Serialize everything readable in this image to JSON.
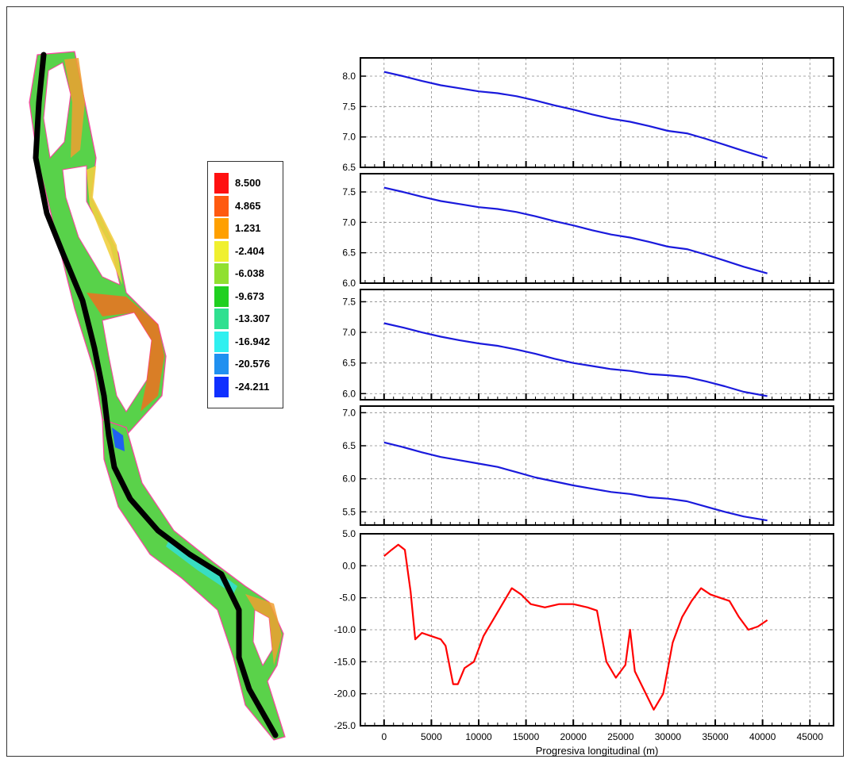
{
  "legend": {
    "values": [
      "8.500",
      "4.865",
      "1.231",
      "-2.404",
      "-6.038",
      "-9.673",
      "-13.307",
      "-16.942",
      "-20.576",
      "-24.211"
    ],
    "colors": [
      "#ff1010",
      "#ff5a10",
      "#ffa000",
      "#f0f030",
      "#90e030",
      "#20d020",
      "#30e090",
      "#30f0f0",
      "#2090f0",
      "#1030ff"
    ]
  },
  "colors": {
    "series_blue": "#1a1adc",
    "series_red": "#ff0000",
    "centerline": "#000000",
    "map_outline": "#ff40a0"
  },
  "chart_data": [
    {
      "type": "line",
      "xlim": [
        -2500,
        47500
      ],
      "ylim": [
        6.5,
        8.3
      ],
      "yticks": [
        "6.5",
        "7.0",
        "7.5",
        "8.0"
      ],
      "series": [
        {
          "color": "#1a1adc",
          "x": [
            0,
            2000,
            4000,
            6000,
            8000,
            10000,
            12000,
            14000,
            16000,
            18000,
            20000,
            22000,
            24000,
            26000,
            28000,
            30000,
            32000,
            34000,
            36000,
            38000,
            40500
          ],
          "values": [
            8.07,
            8.0,
            7.92,
            7.85,
            7.8,
            7.75,
            7.72,
            7.67,
            7.6,
            7.52,
            7.45,
            7.37,
            7.3,
            7.25,
            7.18,
            7.1,
            7.06,
            6.97,
            6.87,
            6.77,
            6.65
          ]
        }
      ]
    },
    {
      "type": "line",
      "xlim": [
        -2500,
        47500
      ],
      "ylim": [
        6.0,
        7.8
      ],
      "yticks": [
        "6.0",
        "6.5",
        "7.0",
        "7.5"
      ],
      "series": [
        {
          "color": "#1a1adc",
          "x": [
            0,
            2000,
            4000,
            6000,
            8000,
            10000,
            12000,
            14000,
            16000,
            18000,
            20000,
            22000,
            24000,
            26000,
            28000,
            30000,
            32000,
            34000,
            36000,
            38000,
            40500
          ],
          "values": [
            7.57,
            7.5,
            7.42,
            7.35,
            7.3,
            7.25,
            7.22,
            7.17,
            7.1,
            7.02,
            6.95,
            6.87,
            6.8,
            6.75,
            6.68,
            6.6,
            6.56,
            6.47,
            6.37,
            6.27,
            6.16
          ]
        }
      ]
    },
    {
      "type": "line",
      "xlim": [
        -2500,
        47500
      ],
      "ylim": [
        5.9,
        7.7
      ],
      "yticks": [
        "6.0",
        "6.5",
        "7.0",
        "7.5"
      ],
      "series": [
        {
          "color": "#1a1adc",
          "x": [
            0,
            2000,
            4000,
            6000,
            8000,
            10000,
            12000,
            14000,
            16000,
            18000,
            20000,
            22000,
            24000,
            26000,
            28000,
            30000,
            32000,
            34000,
            36000,
            38000,
            40500
          ],
          "values": [
            7.15,
            7.08,
            7.0,
            6.93,
            6.87,
            6.82,
            6.78,
            6.72,
            6.65,
            6.57,
            6.5,
            6.45,
            6.4,
            6.37,
            6.32,
            6.3,
            6.27,
            6.2,
            6.12,
            6.03,
            5.96
          ]
        }
      ]
    },
    {
      "type": "line",
      "xlim": [
        -2500,
        47500
      ],
      "ylim": [
        5.3,
        7.1
      ],
      "yticks": [
        "5.5",
        "6.0",
        "6.5",
        "7.0"
      ],
      "series": [
        {
          "color": "#1a1adc",
          "x": [
            0,
            2000,
            4000,
            6000,
            8000,
            10000,
            12000,
            14000,
            16000,
            18000,
            20000,
            22000,
            24000,
            26000,
            28000,
            30000,
            32000,
            34000,
            36000,
            38000,
            40500
          ],
          "values": [
            6.55,
            6.48,
            6.4,
            6.33,
            6.28,
            6.23,
            6.18,
            6.1,
            6.02,
            5.96,
            5.9,
            5.85,
            5.8,
            5.77,
            5.72,
            5.7,
            5.66,
            5.58,
            5.5,
            5.43,
            5.37
          ]
        }
      ]
    },
    {
      "type": "line",
      "xlim": [
        -2500,
        47500
      ],
      "ylim": [
        -25,
        5
      ],
      "yticks": [
        "-25.0",
        "-20.0",
        "-15.0",
        "-10.0",
        "-5.0",
        "0.0",
        "5.0"
      ],
      "xticks": [
        "0",
        "5000",
        "10000",
        "15000",
        "20000",
        "25000",
        "30000",
        "35000",
        "40000",
        "45000"
      ],
      "xlabel": "Progresiva longitudinal (m)",
      "series": [
        {
          "color": "#ff0000",
          "x": [
            0,
            800,
            1500,
            2200,
            2800,
            3300,
            4000,
            5000,
            6000,
            6500,
            7300,
            7800,
            8500,
            9500,
            10500,
            11500,
            12500,
            13500,
            14500,
            15500,
            17000,
            18500,
            20000,
            21500,
            22500,
            23500,
            24500,
            25500,
            26000,
            26500,
            27500,
            28500,
            29500,
            30500,
            31500,
            32500,
            33500,
            34500,
            35500,
            36500,
            37500,
            38500,
            39500,
            40500
          ],
          "values": [
            1.5,
            2.5,
            3.3,
            2.5,
            -4.0,
            -11.5,
            -10.5,
            -11.0,
            -11.5,
            -12.5,
            -18.5,
            -18.5,
            -16.0,
            -15.0,
            -11.0,
            -8.5,
            -6.0,
            -3.5,
            -4.5,
            -6.0,
            -6.5,
            -6.0,
            -6.0,
            -6.5,
            -7.0,
            -15.0,
            -17.5,
            -15.5,
            -10.0,
            -16.5,
            -19.5,
            -22.5,
            -20.0,
            -12.0,
            -8.0,
            -5.5,
            -3.5,
            -4.5,
            -5.0,
            -5.5,
            -8.0,
            -10.0,
            -9.5,
            -8.5
          ]
        }
      ]
    }
  ]
}
